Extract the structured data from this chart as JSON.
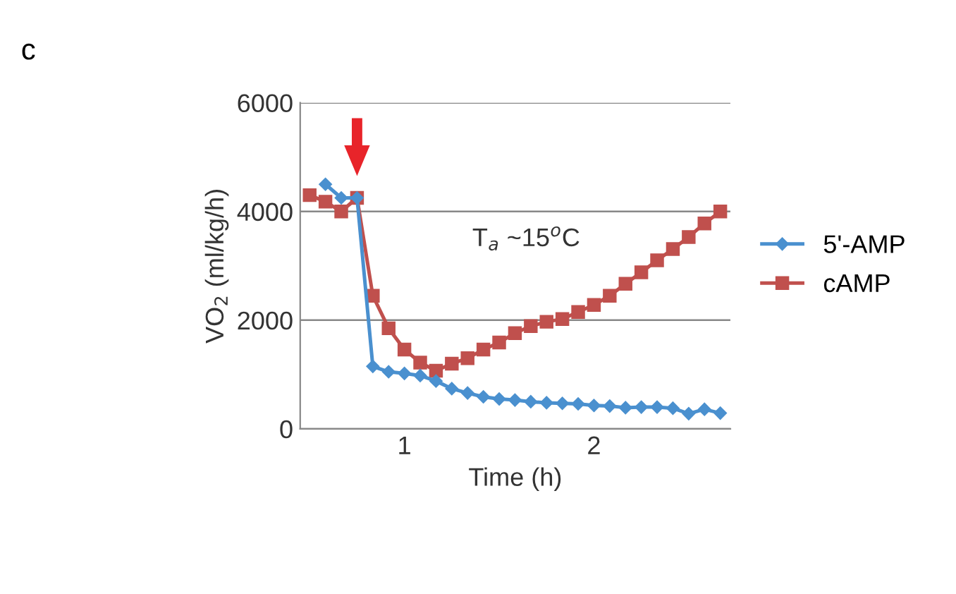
{
  "chart_data": {
    "type": "line",
    "xlabel": "Time (h)",
    "ylabel": "VO$_{2}$ (ml/kg/h)",
    "annotations": [
      "c",
      "T$_{a}$ ~15$^{o}$C"
    ],
    "x": [
      0.5,
      0.5833,
      0.6667,
      0.75,
      0.8333,
      0.9167,
      1.0,
      1.0833,
      1.1667,
      1.25,
      1.3333,
      1.4167,
      1.5,
      1.5833,
      1.6667,
      1.75,
      1.8333,
      1.9167,
      2.0,
      2.0833,
      2.1667,
      2.25,
      2.3333,
      2.4167,
      2.5,
      2.5833,
      2.6667
    ],
    "xlim": [
      0.45,
      2.72
    ],
    "xticks": [
      1,
      2
    ],
    "ylim": [
      0,
      6000
    ],
    "yticks": [
      0,
      2000,
      4000,
      6000
    ],
    "grid": "y",
    "legend": "right",
    "series": [
      {
        "name": "5'-AMP",
        "color": "#4a90cf",
        "marker": "diamond",
        "values": [
          null,
          4500,
          4250,
          4250,
          1150,
          1050,
          1020,
          980,
          880,
          740,
          660,
          590,
          550,
          530,
          500,
          480,
          470,
          460,
          430,
          420,
          390,
          400,
          400,
          380,
          280,
          360,
          290
        ]
      },
      {
        "name": "cAMP",
        "color": "#c0504d",
        "marker": "square",
        "values": [
          4300,
          4180,
          4000,
          4250,
          2450,
          1850,
          1460,
          1220,
          1070,
          1200,
          1300,
          1460,
          1590,
          1760,
          1890,
          1970,
          2020,
          2150,
          2280,
          2450,
          2670,
          2880,
          3100,
          3310,
          3530,
          3780,
          4000
        ]
      }
    ]
  }
}
